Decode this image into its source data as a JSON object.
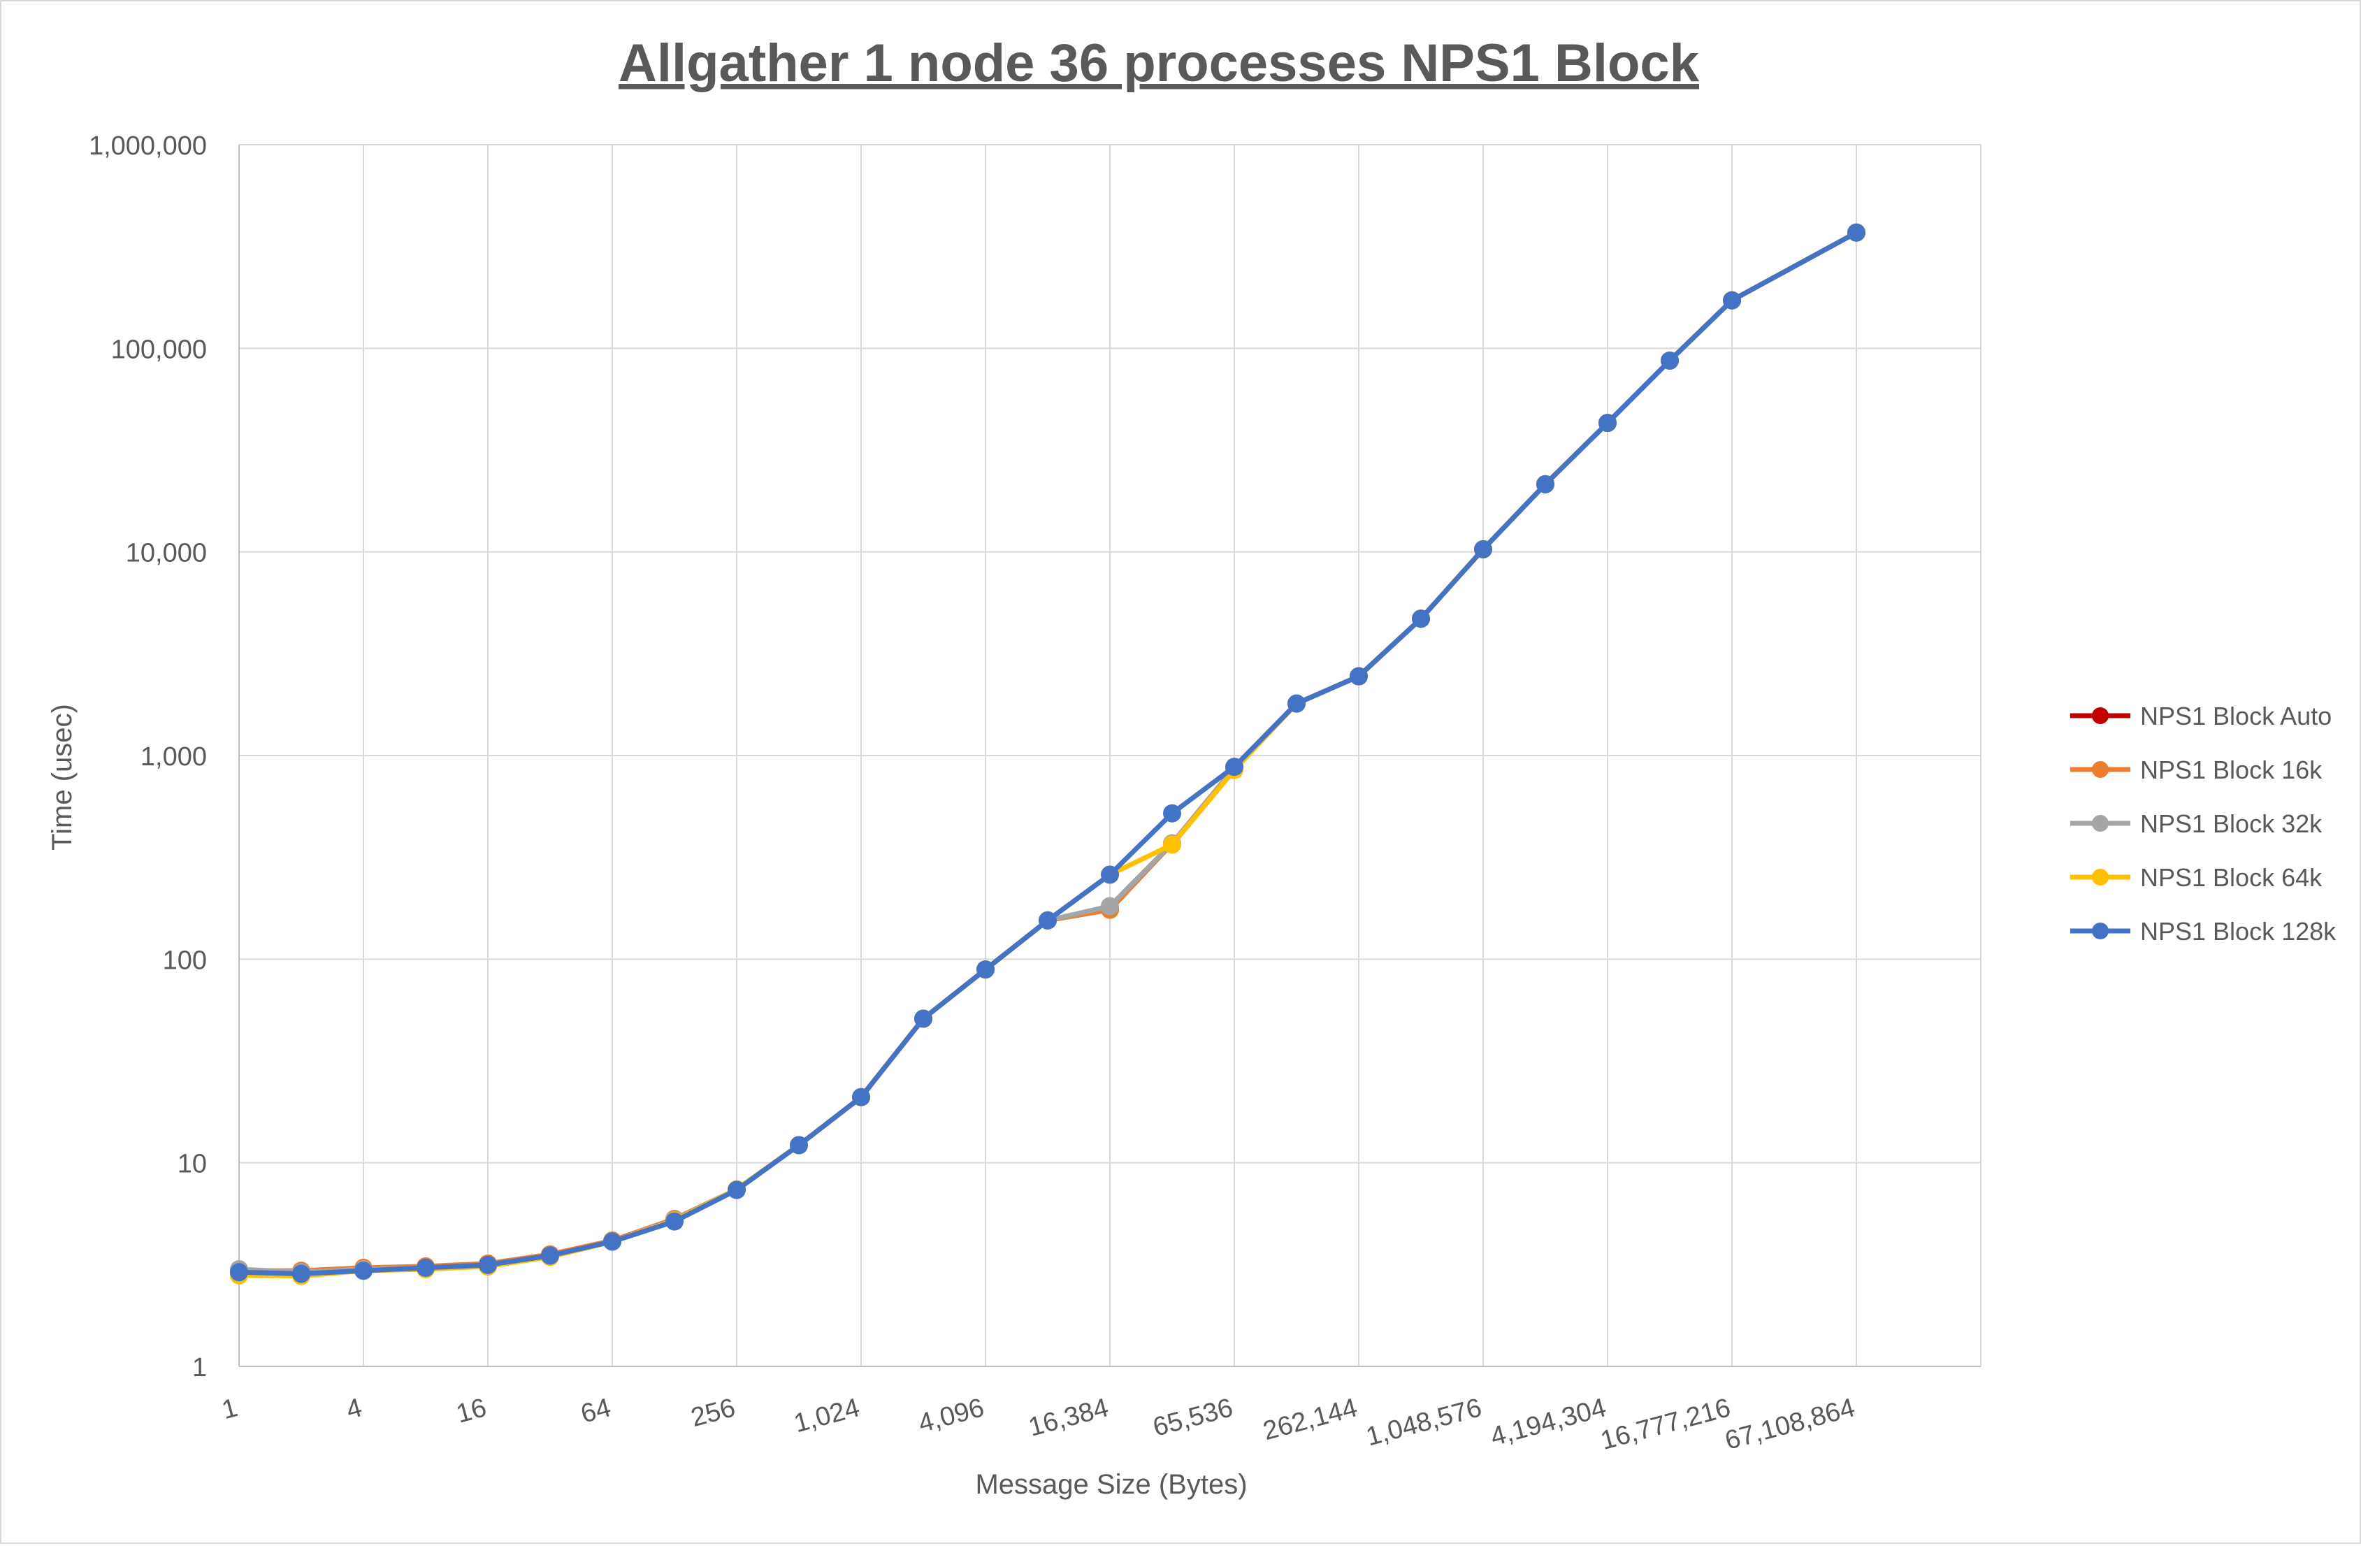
{
  "chart_data": {
    "type": "line",
    "title": "Allgather 1 node 36 processes NPS1 Block",
    "xlabel": "Message Size (Bytes)",
    "ylabel": "Time (usec)",
    "yscale": "log10",
    "ylim": [
      1,
      1000000
    ],
    "y_ticks": [
      1,
      10,
      100,
      1000,
      10000,
      100000,
      1000000
    ],
    "y_tick_labels": [
      "1",
      "10",
      "100",
      "1,000",
      "10,000",
      "100,000",
      "1,000,000"
    ],
    "xscale": "log2",
    "x": [
      1,
      2,
      4,
      8,
      16,
      32,
      64,
      128,
      256,
      512,
      1024,
      2048,
      4096,
      8192,
      16384,
      32768,
      65536,
      131072,
      262144,
      524288,
      1048576,
      2097152,
      4194304,
      8388608,
      16777216,
      33554432,
      67108864
    ],
    "x_tick_values": [
      1,
      4,
      16,
      64,
      256,
      1024,
      4096,
      16384,
      65536,
      262144,
      1048576,
      4194304,
      16777216,
      67108864
    ],
    "x_tick_labels": [
      "1",
      "4",
      "16",
      "64",
      "256",
      "1,024",
      "4,096",
      "16,384",
      "65,536",
      "262,144",
      "1,048,576",
      "4,194,304",
      "16,777,216",
      "67,108,864"
    ],
    "x_grid_values": [
      1,
      4,
      16,
      64,
      256,
      1024,
      4096,
      16384,
      65536,
      262144,
      1048576,
      4194304,
      16777216,
      67108864,
      268435456
    ],
    "grid": true,
    "legend_position": "right",
    "series": [
      {
        "name": "NPS1 Block Auto",
        "color": "#c00000",
        "values": [
          2.95,
          2.9,
          3.0,
          3.05,
          3.1,
          3.5,
          4.1,
          5.2,
          7.4,
          12.2,
          21.0,
          51.0,
          89.0,
          155.0,
          175.0,
          370.0,
          870.0,
          1800.0,
          2450.0,
          4700.0,
          10300.0,
          21500.0,
          43000.0,
          87000.0,
          172000.0,
          0,
          370000.0
        ]
      },
      {
        "name": "NPS1 Block 16k",
        "color": "#ed7d31",
        "values": [
          2.95,
          2.95,
          3.05,
          3.1,
          3.2,
          3.55,
          4.15,
          5.3,
          7.4,
          12.2,
          21.0,
          51.0,
          89.0,
          155.0,
          175.0,
          370.0,
          870.0,
          1800.0,
          2450.0,
          4700.0,
          10300.0,
          21500.0,
          43000.0,
          87000.0,
          172000.0,
          0,
          370000.0
        ]
      },
      {
        "name": "NPS1 Block 32k",
        "color": "#a5a5a5",
        "values": [
          3.0,
          2.9,
          3.0,
          3.05,
          3.15,
          3.5,
          4.1,
          5.25,
          7.4,
          12.2,
          21.0,
          51.0,
          89.0,
          155.0,
          182.0,
          370.0,
          870.0,
          1800.0,
          2450.0,
          4700.0,
          10300.0,
          21500.0,
          43000.0,
          87000.0,
          172000.0,
          0,
          370000.0
        ]
      },
      {
        "name": "NPS1 Block 64k",
        "color": "#ffc000",
        "values": [
          2.8,
          2.78,
          2.95,
          3.0,
          3.1,
          3.45,
          4.1,
          5.2,
          7.4,
          12.2,
          21.0,
          51.0,
          89.0,
          155.0,
          260.0,
          365.0,
          850.0,
          1800.0,
          2450.0,
          4700.0,
          10300.0,
          21500.0,
          43000.0,
          87000.0,
          172000.0,
          0,
          370000.0
        ]
      },
      {
        "name": "NPS1 Block 128k",
        "color": "#4472c4",
        "values": [
          2.9,
          2.85,
          2.95,
          3.05,
          3.15,
          3.5,
          4.1,
          5.15,
          7.35,
          12.2,
          21.0,
          51.0,
          89.0,
          155.0,
          260.0,
          520.0,
          880.0,
          1800.0,
          2450.0,
          4700.0,
          10300.0,
          21500.0,
          43000.0,
          87000.0,
          172000.0,
          0,
          370000.0
        ]
      }
    ]
  }
}
